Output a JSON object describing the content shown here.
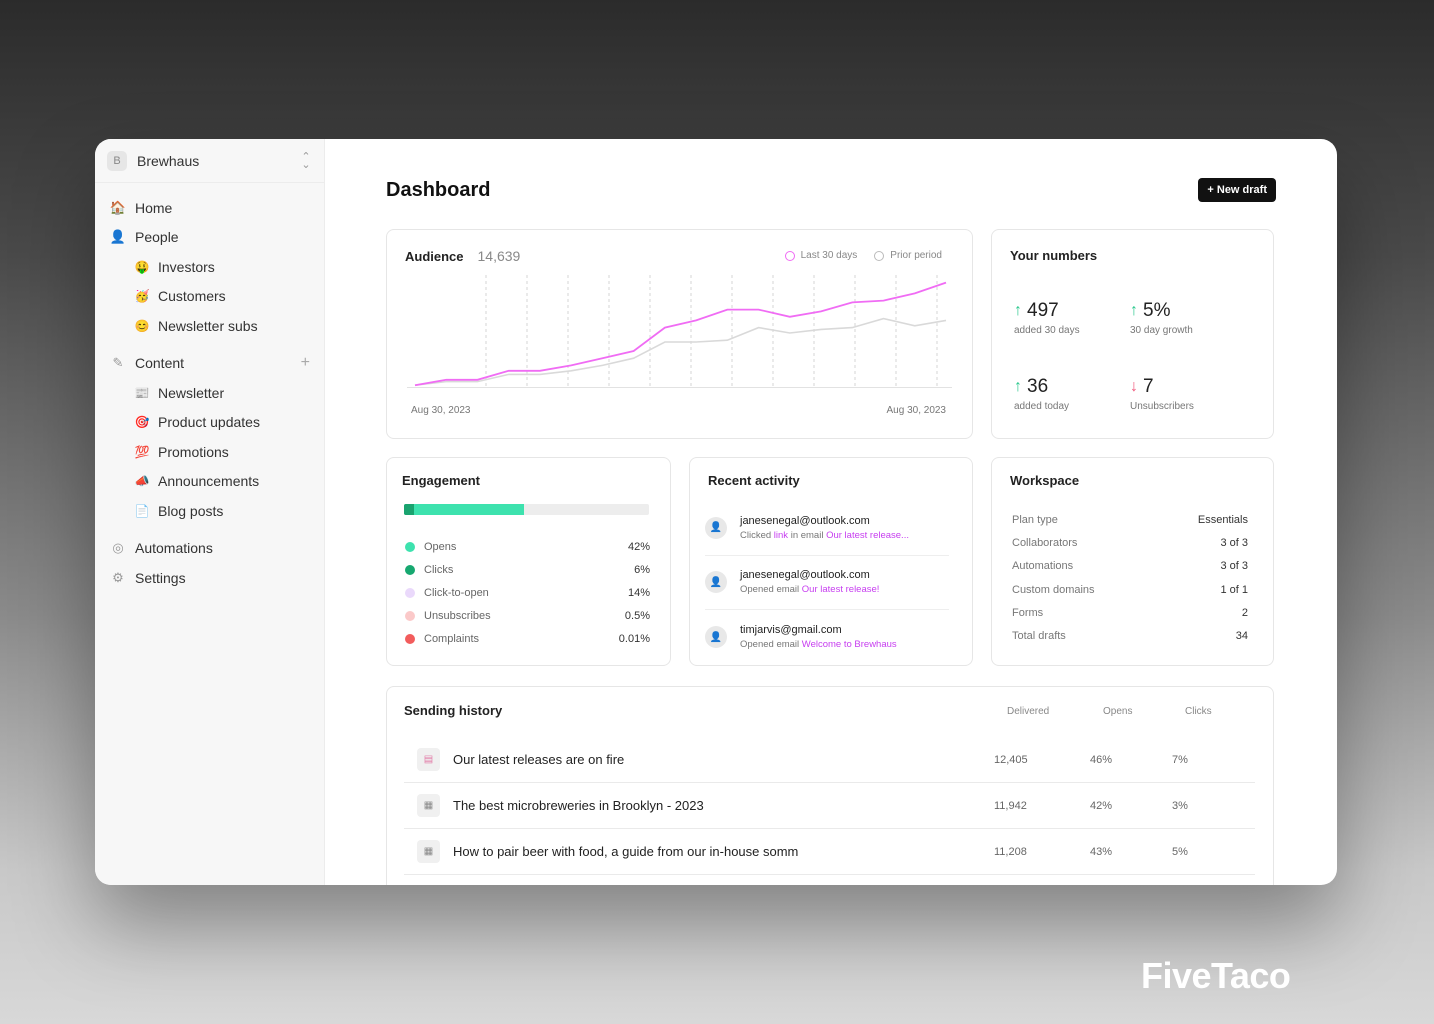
{
  "workspace_switcher": {
    "badge": "B",
    "name": "Brewhaus",
    "chevron": "chevron-updown-icon"
  },
  "sidebar": {
    "items": [
      {
        "label": "Home",
        "icon": "🏠"
      },
      {
        "label": "People",
        "icon": "👤"
      },
      {
        "label": "Investors",
        "icon": "🤑",
        "sub": true
      },
      {
        "label": "Customers",
        "icon": "🥳",
        "sub": true
      },
      {
        "label": "Newsletter subs",
        "icon": "😊",
        "sub": true
      },
      {
        "label": "Content",
        "icon": "✎"
      },
      {
        "label": "Newsletter",
        "icon": "📰",
        "sub": true
      },
      {
        "label": "Product updates",
        "icon": "🎯",
        "sub": true
      },
      {
        "label": "Promotions",
        "icon": "💯",
        "sub": true
      },
      {
        "label": "Announcements",
        "icon": "📣",
        "sub": true
      },
      {
        "label": "Blog posts",
        "icon": "📄",
        "sub": true
      },
      {
        "label": "Automations",
        "icon": "◎"
      },
      {
        "label": "Settings",
        "icon": "⚙"
      }
    ],
    "content_add": "+"
  },
  "page": {
    "title": "Dashboard",
    "new_draft": "+ New draft"
  },
  "audience": {
    "title": "Audience",
    "count": "14,639",
    "legend_current": "Last 30 days",
    "legend_prior": "Prior period",
    "date_start": "Aug 30, 2023",
    "date_end": "Aug 30, 2023",
    "current_color": "#f06cf4",
    "prior_color": "#d9d9d9"
  },
  "chart_data": {
    "type": "line",
    "title": "Audience",
    "x_labels": [
      "Aug 30, 2023",
      "Aug 30, 2023"
    ],
    "series": [
      {
        "name": "Last 30 days",
        "values": [
          2,
          8,
          8,
          18,
          18,
          24,
          32,
          40,
          66,
          74,
          86,
          86,
          78,
          84,
          94,
          96,
          104,
          116
        ]
      },
      {
        "name": "Prior period",
        "values": [
          2,
          6,
          6,
          14,
          14,
          18,
          24,
          32,
          50,
          50,
          52,
          66,
          60,
          64,
          66,
          76,
          68,
          74
        ]
      }
    ],
    "grid": "vertical-dashed"
  },
  "your_numbers": {
    "title": "Your numbers",
    "stats": [
      {
        "value": "497",
        "label": "added 30 days",
        "direction": "up"
      },
      {
        "value": "5%",
        "label": "30 day growth",
        "direction": "up"
      },
      {
        "value": "36",
        "label": "added today",
        "direction": "up"
      },
      {
        "value": "7",
        "label": "Unsubscribers",
        "direction": "down"
      }
    ],
    "up_color": "#2ec98f",
    "down_color": "#f05a7e"
  },
  "engagement": {
    "title": "Engagement",
    "bar_fraction": 0.49,
    "rows": [
      {
        "label": "Opens",
        "value": "42%",
        "color": "#3de2ae"
      },
      {
        "label": "Clicks",
        "value": "6%",
        "color": "#17a870"
      },
      {
        "label": "Click-to-open",
        "value": "14%",
        "color": "#ead9fb"
      },
      {
        "label": "Unsubscribes",
        "value": "0.5%",
        "color": "#fbc9c9"
      },
      {
        "label": "Complaints",
        "value": "0.01%",
        "color": "#f25c5c"
      }
    ]
  },
  "recent_activity": {
    "title": "Recent activity",
    "items": [
      {
        "email": "janesenegal@outlook.com",
        "pre": "Clicked ",
        "link1": "link",
        "mid": " in email ",
        "link2": "Our latest release..."
      },
      {
        "email": "janesenegal@outlook.com",
        "pre": "Opened email ",
        "link1": "Our latest release!",
        "mid": "",
        "link2": ""
      },
      {
        "email": "timjarvis@gmail.com",
        "pre": "Opened email ",
        "link1": "Welcome to Brewhaus",
        "mid": "",
        "link2": ""
      }
    ]
  },
  "workspace": {
    "title": "Workspace",
    "rows": [
      {
        "label": "Plan type",
        "value": "Essentials"
      },
      {
        "label": "Collaborators",
        "value": "3 of 3"
      },
      {
        "label": "Automations",
        "value": "3 of 3"
      },
      {
        "label": "Custom domains",
        "value": "1 of 1"
      },
      {
        "label": "Forms",
        "value": "2"
      },
      {
        "label": "Total drafts",
        "value": "34"
      }
    ]
  },
  "sending_history": {
    "title": "Sending history",
    "headers": {
      "delivered": "Delivered",
      "opens": "Opens",
      "clicks": "Clicks"
    },
    "rows": [
      {
        "title": "Our latest releases are on fire",
        "delivered": "12,405",
        "opens": "46%",
        "clicks": "7%"
      },
      {
        "title": "The best microbreweries in Brooklyn - 2023",
        "delivered": "11,942",
        "opens": "42%",
        "clicks": "3%"
      },
      {
        "title": "How to pair beer with food, a guide from our in-house somm",
        "delivered": "11,208",
        "opens": "43%",
        "clicks": "5%"
      }
    ]
  },
  "brand": "FiveTaco"
}
